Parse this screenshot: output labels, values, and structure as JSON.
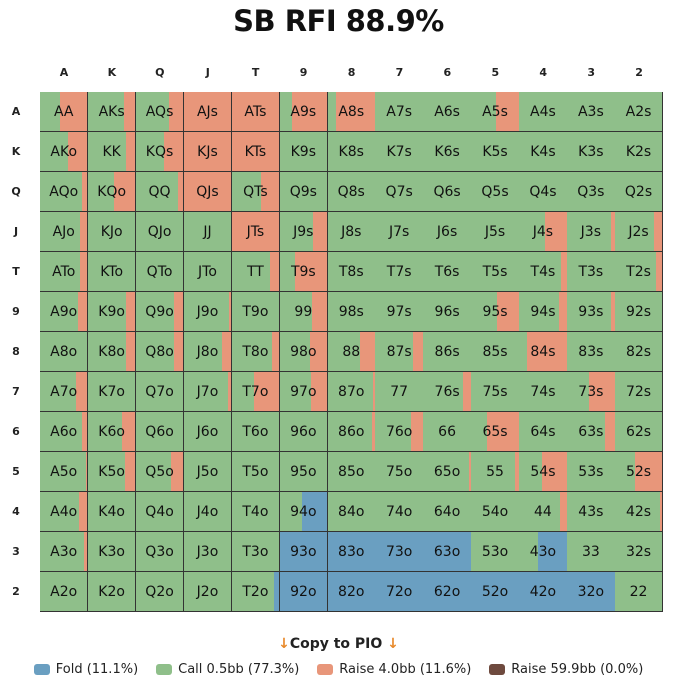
{
  "chart_data": {
    "type": "heatmap",
    "title": "SB RFI 88.9%",
    "ranks": [
      "A",
      "K",
      "Q",
      "J",
      "T",
      "9",
      "8",
      "7",
      "6",
      "5",
      "4",
      "3",
      "2"
    ],
    "colors": {
      "fold": "#6a9fc1",
      "call": "#8fbf8a",
      "raise": "#e8967a",
      "raise_big": "#6e4a3e"
    },
    "rows": [
      [
        [
          "AA",
          0.58,
          0
        ],
        [
          "AKs",
          0.24,
          0
        ],
        [
          "AQs",
          0.3,
          0
        ],
        [
          "AJs",
          1,
          0
        ],
        [
          "ATs",
          1,
          0
        ],
        [
          "A9s",
          0.73,
          0
        ],
        [
          "A8s",
          0.82,
          0
        ],
        [
          "A7s",
          0,
          0
        ],
        [
          "A6s",
          0,
          0
        ],
        [
          "A5s",
          0.48,
          0
        ],
        [
          "A4s",
          0,
          0
        ],
        [
          "A3s",
          0,
          0
        ],
        [
          "A2s",
          0,
          0
        ]
      ],
      [
        [
          "AKo",
          0.41,
          0
        ],
        [
          "KK",
          0.2,
          0
        ],
        [
          "KQs",
          0.4,
          0
        ],
        [
          "KJs",
          1,
          0
        ],
        [
          "KTs",
          1,
          0
        ],
        [
          "K9s",
          0,
          0
        ],
        [
          "K8s",
          0,
          0
        ],
        [
          "K7s",
          0,
          0
        ],
        [
          "K6s",
          0,
          0
        ],
        [
          "K5s",
          0,
          0
        ],
        [
          "K4s",
          0,
          0
        ],
        [
          "K3s",
          0,
          0
        ],
        [
          "K2s",
          0,
          0
        ]
      ],
      [
        [
          "AQo",
          0.11,
          0
        ],
        [
          "KQo",
          0.45,
          0
        ],
        [
          "QQ",
          0.11,
          0
        ],
        [
          "QJs",
          1,
          0
        ],
        [
          "QTs",
          0.39,
          0
        ],
        [
          "Q9s",
          0,
          0
        ],
        [
          "Q8s",
          0,
          0
        ],
        [
          "Q7s",
          0,
          0
        ],
        [
          "Q6s",
          0,
          0
        ],
        [
          "Q5s",
          0,
          0
        ],
        [
          "Q4s",
          0,
          0
        ],
        [
          "Q3s",
          0,
          0
        ],
        [
          "Q2s",
          0,
          0
        ]
      ],
      [
        [
          "AJo",
          0.15,
          0
        ],
        [
          "KJo",
          0,
          0
        ],
        [
          "QJo",
          0,
          0
        ],
        [
          "JJ",
          0,
          0
        ],
        [
          "JTs",
          1,
          0
        ],
        [
          "J9s",
          0.29,
          0
        ],
        [
          "J8s",
          0,
          0
        ],
        [
          "J7s",
          0,
          0
        ],
        [
          "J6s",
          0,
          0
        ],
        [
          "J5s",
          0,
          0
        ],
        [
          "J4s",
          0.46,
          0
        ],
        [
          "J3s",
          0.07,
          0
        ],
        [
          "J2s",
          0.17,
          0
        ]
      ],
      [
        [
          "ATo",
          0.15,
          0
        ],
        [
          "KTo",
          0,
          0
        ],
        [
          "QTo",
          0,
          0
        ],
        [
          "JTo",
          0,
          0
        ],
        [
          "TT",
          0.2,
          0
        ],
        [
          "T9s",
          0.67,
          0
        ],
        [
          "T8s",
          0,
          0
        ],
        [
          "T7s",
          0,
          0
        ],
        [
          "T6s",
          0,
          0
        ],
        [
          "T5s",
          0,
          0
        ],
        [
          "T4s",
          0.11,
          0
        ],
        [
          "T3s",
          0,
          0
        ],
        [
          "T2s",
          0.12,
          0
        ]
      ],
      [
        [
          "A9o",
          0.2,
          0
        ],
        [
          "K9o",
          0.2,
          0
        ],
        [
          "Q9o",
          0.2,
          0
        ],
        [
          "J9o",
          0.04,
          0
        ],
        [
          "T9o",
          0,
          0
        ],
        [
          "99",
          0.32,
          0
        ],
        [
          "98s",
          0,
          0
        ],
        [
          "97s",
          0,
          0
        ],
        [
          "96s",
          0,
          0
        ],
        [
          "95s",
          0.45,
          0
        ],
        [
          "94s",
          0.17,
          0
        ],
        [
          "93s",
          0.08,
          0
        ],
        [
          "92s",
          0,
          0
        ]
      ],
      [
        [
          "A8o",
          0,
          0
        ],
        [
          "K8o",
          0.2,
          0
        ],
        [
          "Q8o",
          0.2,
          0
        ],
        [
          "J8o",
          0.2,
          0
        ],
        [
          "T8o",
          0.15,
          0
        ],
        [
          "98o",
          0.36,
          0
        ],
        [
          "88",
          0.31,
          0
        ],
        [
          "87s",
          0.2,
          0
        ],
        [
          "86s",
          0,
          0
        ],
        [
          "85s",
          0,
          0
        ],
        [
          "84s",
          0.83,
          0
        ],
        [
          "83s",
          0,
          0
        ],
        [
          "82s",
          0,
          0
        ]
      ],
      [
        [
          "A7o",
          0.25,
          0
        ],
        [
          "K7o",
          0,
          0
        ],
        [
          "Q7o",
          0,
          0
        ],
        [
          "J7o",
          0.07,
          0
        ],
        [
          "T7o",
          0.53,
          0
        ],
        [
          "97o",
          0.33,
          0
        ],
        [
          "87o",
          0.04,
          0
        ],
        [
          "77",
          0,
          0
        ],
        [
          "76s",
          0.17,
          0
        ],
        [
          "75s",
          0,
          0
        ],
        [
          "74s",
          0,
          0
        ],
        [
          "73s",
          0.54,
          0
        ],
        [
          "72s",
          0,
          0
        ]
      ],
      [
        [
          "A6o",
          0.12,
          0
        ],
        [
          "K6o",
          0.29,
          0
        ],
        [
          "Q6o",
          0,
          0
        ],
        [
          "J6o",
          0,
          0
        ],
        [
          "T6o",
          0,
          0
        ],
        [
          "96o",
          0,
          0
        ],
        [
          "86o",
          0.07,
          0
        ],
        [
          "76o",
          0.24,
          0
        ],
        [
          "66",
          0,
          0
        ],
        [
          "65s",
          0.67,
          0
        ],
        [
          "64s",
          0,
          0
        ],
        [
          "63s",
          0.21,
          0
        ],
        [
          "62s",
          0,
          0
        ]
      ],
      [
        [
          "A5o",
          0.03,
          0
        ],
        [
          "K5o",
          0.21,
          0
        ],
        [
          "Q5o",
          0.25,
          0
        ],
        [
          "J5o",
          0,
          0
        ],
        [
          "T5o",
          0,
          0
        ],
        [
          "95o",
          0,
          0
        ],
        [
          "85o",
          0,
          0
        ],
        [
          "75o",
          0,
          0
        ],
        [
          "65o",
          0.04,
          0
        ],
        [
          "55",
          0.08,
          0
        ],
        [
          "54s",
          0.53,
          0
        ],
        [
          "53s",
          0,
          0
        ],
        [
          "52s",
          0.58,
          0
        ]
      ],
      [
        [
          "A4o",
          0.17,
          0
        ],
        [
          "K4o",
          0,
          0
        ],
        [
          "Q4o",
          0,
          0
        ],
        [
          "J4o",
          0,
          0
        ],
        [
          "T4o",
          0,
          0
        ],
        [
          "94o",
          0,
          0.53
        ],
        [
          "84o",
          0,
          0
        ],
        [
          "74o",
          0,
          0
        ],
        [
          "64o",
          0,
          0
        ],
        [
          "54o",
          0,
          0
        ],
        [
          "44",
          0.13,
          0
        ],
        [
          "43s",
          0,
          0
        ],
        [
          "42s",
          0.04,
          0
        ]
      ],
      [
        [
          "A3o",
          0.08,
          0
        ],
        [
          "K3o",
          0,
          0
        ],
        [
          "Q3o",
          0,
          0
        ],
        [
          "J3o",
          0,
          0
        ],
        [
          "T3o",
          0,
          0
        ],
        [
          "93o",
          0,
          1
        ],
        [
          "83o",
          0,
          1
        ],
        [
          "73o",
          0,
          1
        ],
        [
          "63o",
          0,
          1
        ],
        [
          "53o",
          0,
          0
        ],
        [
          "43o",
          0,
          0.61
        ],
        [
          "33",
          0,
          0
        ],
        [
          "32s",
          0,
          0
        ]
      ],
      [
        [
          "A2o",
          0,
          0
        ],
        [
          "K2o",
          0,
          0
        ],
        [
          "Q2o",
          0,
          0
        ],
        [
          "J2o",
          0,
          0
        ],
        [
          "T2o",
          0,
          0.11
        ],
        [
          "92o",
          0,
          1
        ],
        [
          "82o",
          0,
          1
        ],
        [
          "72o",
          0,
          1
        ],
        [
          "62o",
          0,
          1
        ],
        [
          "52o",
          0,
          1
        ],
        [
          "42o",
          0,
          1
        ],
        [
          "32o",
          0,
          1
        ],
        [
          "22",
          0,
          0
        ]
      ]
    ],
    "legend": [
      {
        "key": "fold",
        "label": "Fold (11.1%)"
      },
      {
        "key": "call",
        "label": "Call 0.5bb (77.3%)"
      },
      {
        "key": "raise",
        "label": "Raise 4.0bb (11.6%)"
      },
      {
        "key": "raise_big",
        "label": "Raise 59.9bb (0.0%)"
      }
    ]
  },
  "copy_button": {
    "label": "Copy to PIO",
    "arrow": "↓"
  }
}
